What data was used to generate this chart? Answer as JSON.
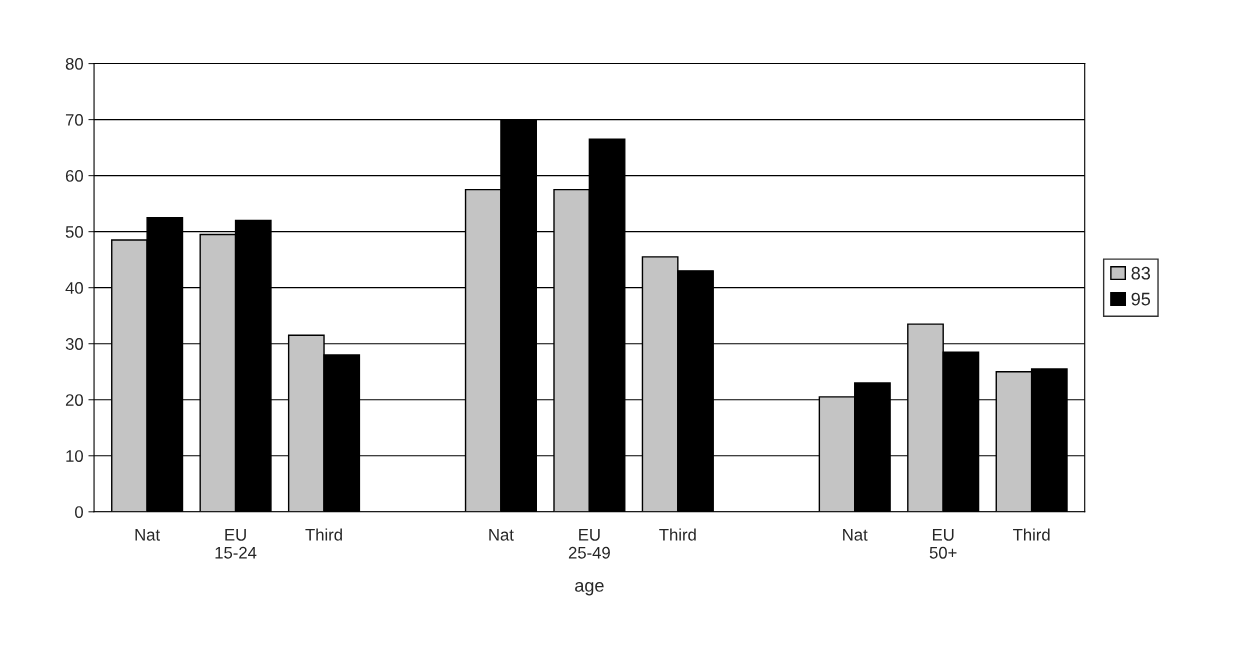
{
  "chart_data": {
    "type": "bar",
    "xlabel": "age",
    "categories": [
      "Nat",
      "EU\n15-24",
      "Third",
      null,
      "Nat",
      "EU\n25-49",
      "Third",
      null,
      "Nat",
      "EU\n50+",
      "Third"
    ],
    "series": [
      {
        "name": "83",
        "color": "#c4c4c4",
        "values": [
          48.5,
          49.5,
          31.5,
          null,
          57.5,
          57.5,
          45.5,
          null,
          20.5,
          33.5,
          25
        ]
      },
      {
        "name": "95",
        "color": "#000000",
        "values": [
          52.5,
          52,
          28,
          null,
          70,
          66.5,
          43,
          null,
          23,
          28.5,
          25.5
        ]
      }
    ],
    "ylim": [
      0,
      80
    ],
    "yticks": [
      0,
      10,
      20,
      30,
      40,
      50,
      60,
      70,
      80
    ],
    "grid": "y",
    "legend": "right"
  }
}
